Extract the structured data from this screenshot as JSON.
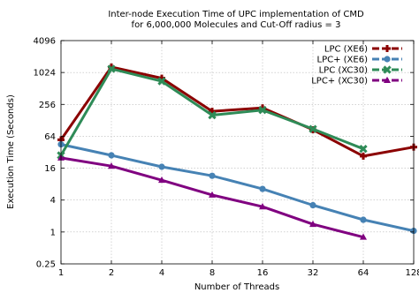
{
  "chart_data": {
    "type": "line",
    "title_lines": [
      "Inter-node Execution Time of UPC implementation of CMD",
      "for 6,000,000 Molecules and Cut-Off radius = 3"
    ],
    "xlabel": "Number of Threads",
    "ylabel": "Execution Time (Seconds)",
    "x_scale": "log2",
    "y_scale": "log4",
    "xlim": [
      1,
      128
    ],
    "ylim": [
      0.25,
      4096
    ],
    "x_ticks": [
      1,
      2,
      4,
      8,
      16,
      32,
      64,
      128
    ],
    "x_tick_labels": [
      "1",
      "2",
      "4",
      "8",
      "16",
      "32",
      "64",
      "128"
    ],
    "y_ticks": [
      0.25,
      1,
      4,
      16,
      64,
      256,
      1024,
      4096
    ],
    "y_tick_labels": [
      "0.25",
      "1",
      "4",
      "16",
      "64",
      "256",
      "1024",
      "4096"
    ],
    "grid": true,
    "legend_position": "top-right",
    "series": [
      {
        "name": "LPC (XE6)",
        "color": "#8b0000",
        "marker": "plus",
        "x": [
          1,
          2,
          4,
          8,
          16,
          32,
          64,
          128
        ],
        "y": [
          55,
          1300,
          800,
          190,
          220,
          85,
          27,
          40
        ]
      },
      {
        "name": "LPC+ (XE6)",
        "color": "#4682b4",
        "marker": "circle",
        "x": [
          1,
          2,
          4,
          8,
          16,
          32,
          64,
          128
        ],
        "y": [
          45,
          28,
          17,
          11.5,
          6.5,
          3.2,
          1.7,
          1.05
        ]
      },
      {
        "name": "LPC (XC30)",
        "color": "#2e8b57",
        "marker": "cross",
        "x": [
          1,
          2,
          4,
          8,
          16,
          32,
          64
        ],
        "y": [
          28,
          1200,
          700,
          160,
          200,
          88,
          37
        ]
      },
      {
        "name": "LPC+ (XC30)",
        "color": "#800080",
        "marker": "triangle",
        "x": [
          1,
          2,
          4,
          8,
          16,
          32,
          64
        ],
        "y": [
          25,
          17.5,
          9.5,
          5,
          3,
          1.4,
          0.8
        ]
      }
    ]
  }
}
